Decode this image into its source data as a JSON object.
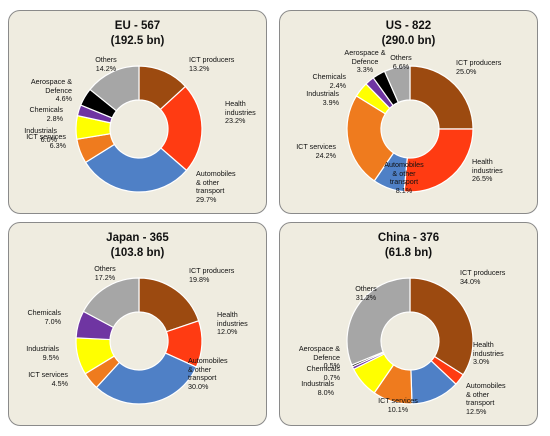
{
  "chart_data": [
    {
      "type": "donut",
      "title": "EU - 567",
      "subtitle": "(192.5 bn)",
      "slices": [
        {
          "label": "ICT producers",
          "value": 13.2,
          "text": "13.2%",
          "color": "#9c4a10"
        },
        {
          "label": "Health\nindustries",
          "value": 23.2,
          "text": "23.2%",
          "color": "#ff3b12"
        },
        {
          "label": "Automobiles\n& other\ntransport",
          "value": 29.7,
          "text": "29.7%",
          "color": "#4f80c6"
        },
        {
          "label": "ICT services",
          "value": 6.3,
          "text": "6.3%",
          "color": "#ef7b1e"
        },
        {
          "label": "Industrials",
          "value": 6.0,
          "text": "6.0%",
          "color": "#ffff00"
        },
        {
          "label": "Chemicals",
          "value": 2.8,
          "text": "2.8%",
          "color": "#6f35a2"
        },
        {
          "label": "Aerospace &\nDefence",
          "value": 4.6,
          "text": "4.6%",
          "color": "#000000"
        },
        {
          "label": "Others",
          "value": 14.2,
          "text": "14.2%",
          "color": "#a6a6a6"
        }
      ]
    },
    {
      "type": "donut",
      "title": "US  - 822",
      "subtitle": "(290.0 bn)",
      "slices": [
        {
          "label": "ICT producers",
          "value": 25.0,
          "text": "25.0%",
          "color": "#9c4a10"
        },
        {
          "label": "Health\nindustries",
          "value": 26.5,
          "text": "26.5%",
          "color": "#ff3b12"
        },
        {
          "label": "Automobiles\n& other\ntransport",
          "value": 8.1,
          "text": "8.1%",
          "color": "#4f80c6"
        },
        {
          "label": "ICT services",
          "value": 24.2,
          "text": "24.2%",
          "color": "#ef7b1e"
        },
        {
          "label": "Industrials",
          "value": 3.9,
          "text": "3.9%",
          "color": "#ffff00"
        },
        {
          "label": "Chemicals",
          "value": 2.4,
          "text": "2.4%",
          "color": "#6f35a2"
        },
        {
          "label": "Aerospace &\nDefence",
          "value": 3.3,
          "text": "3.3%",
          "color": "#000000"
        },
        {
          "label": "Others",
          "value": 6.6,
          "text": "6.6%",
          "color": "#a6a6a6"
        }
      ]
    },
    {
      "type": "donut",
      "title": "Japan - 365",
      "subtitle": "(103.8 bn)",
      "slices": [
        {
          "label": "ICT producers",
          "value": 19.8,
          "text": "19.8%",
          "color": "#9c4a10"
        },
        {
          "label": "Health\nindustries",
          "value": 12.0,
          "text": "12.0%",
          "color": "#ff3b12"
        },
        {
          "label": "Automobiles\n& other\ntransport",
          "value": 30.0,
          "text": "30.0%",
          "color": "#4f80c6"
        },
        {
          "label": "ICT services",
          "value": 4.5,
          "text": "4.5%",
          "color": "#ef7b1e"
        },
        {
          "label": "Industrials",
          "value": 9.5,
          "text": "9.5%",
          "color": "#ffff00"
        },
        {
          "label": "Chemicals",
          "value": 7.0,
          "text": "7.0%",
          "color": "#6f35a2"
        },
        {
          "label": "Others",
          "value": 17.2,
          "text": "17.2%",
          "color": "#a6a6a6"
        }
      ]
    },
    {
      "type": "donut",
      "title": "China - 376",
      "subtitle": "(61.8 bn)",
      "slices": [
        {
          "label": "ICT producers",
          "value": 34.0,
          "text": "34.0%",
          "color": "#9c4a10"
        },
        {
          "label": "Health\nindustries",
          "value": 3.0,
          "text": "3.0%",
          "color": "#ff3b12"
        },
        {
          "label": "Automobiles\n& other\ntransport",
          "value": 12.5,
          "text": "12.5%",
          "color": "#4f80c6"
        },
        {
          "label": "ICT services",
          "value": 10.1,
          "text": "10.1%",
          "color": "#ef7b1e"
        },
        {
          "label": "Industrials",
          "value": 8.0,
          "text": "8.0%",
          "color": "#ffff00"
        },
        {
          "label": "Chemicals",
          "value": 0.7,
          "text": "0.7%",
          "color": "#6f35a2"
        },
        {
          "label": "Aerospace &\nDefence",
          "value": 0.5,
          "text": "0.5%",
          "color": "#000000"
        },
        {
          "label": "Others",
          "value": 31.2,
          "text": "31.2%",
          "color": "#a6a6a6"
        }
      ]
    }
  ]
}
